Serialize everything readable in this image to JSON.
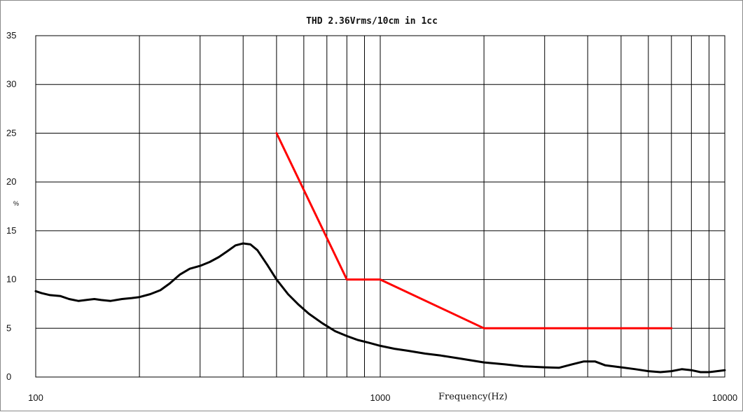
{
  "chart_data": {
    "type": "line",
    "title": "THD 2.36Vrms/10cm in 1cc",
    "xlabel": "Frequency(Hz)",
    "ylabel": "%",
    "x_scale": "log",
    "xlim": [
      100,
      10000
    ],
    "ylim": [
      0,
      35
    ],
    "x_tick_labels": [
      {
        "value": 100,
        "label": "100"
      },
      {
        "value": 1000,
        "label": "1000"
      },
      {
        "value": 10000,
        "label": "10000"
      }
    ],
    "y_ticks": [
      0,
      5,
      10,
      15,
      20,
      25,
      30,
      35
    ],
    "grid": true,
    "x_gridlines": [
      200,
      300,
      400,
      500,
      600,
      700,
      800,
      900,
      1000,
      2000,
      3000,
      4000,
      5000,
      6000,
      7000,
      8000,
      9000
    ],
    "series": [
      {
        "color": "#000000",
        "points": [
          [
            100,
            8.8
          ],
          [
            104,
            8.6
          ],
          [
            110,
            8.4
          ],
          [
            118,
            8.3
          ],
          [
            125,
            8.0
          ],
          [
            133,
            7.8
          ],
          [
            140,
            7.9
          ],
          [
            148,
            8.0
          ],
          [
            155,
            7.9
          ],
          [
            165,
            7.8
          ],
          [
            178,
            8.0
          ],
          [
            190,
            8.1
          ],
          [
            200,
            8.2
          ],
          [
            215,
            8.5
          ],
          [
            230,
            8.9
          ],
          [
            245,
            9.6
          ],
          [
            262,
            10.5
          ],
          [
            280,
            11.1
          ],
          [
            300,
            11.4
          ],
          [
            320,
            11.8
          ],
          [
            340,
            12.3
          ],
          [
            360,
            12.9
          ],
          [
            380,
            13.5
          ],
          [
            400,
            13.7
          ],
          [
            420,
            13.6
          ],
          [
            440,
            13.0
          ],
          [
            470,
            11.5
          ],
          [
            500,
            10.0
          ],
          [
            540,
            8.5
          ],
          [
            580,
            7.4
          ],
          [
            620,
            6.5
          ],
          [
            680,
            5.5
          ],
          [
            740,
            4.7
          ],
          [
            800,
            4.2
          ],
          [
            860,
            3.8
          ],
          [
            930,
            3.5
          ],
          [
            1000,
            3.2
          ],
          [
            1100,
            2.9
          ],
          [
            1200,
            2.7
          ],
          [
            1350,
            2.4
          ],
          [
            1500,
            2.2
          ],
          [
            1700,
            1.9
          ],
          [
            2000,
            1.5
          ],
          [
            2300,
            1.3
          ],
          [
            2600,
            1.1
          ],
          [
            3000,
            1.0
          ],
          [
            3300,
            0.95
          ],
          [
            3600,
            1.3
          ],
          [
            3900,
            1.6
          ],
          [
            4200,
            1.6
          ],
          [
            4500,
            1.2
          ],
          [
            5000,
            1.0
          ],
          [
            5500,
            0.8
          ],
          [
            6000,
            0.6
          ],
          [
            6500,
            0.5
          ],
          [
            7000,
            0.6
          ],
          [
            7500,
            0.8
          ],
          [
            8000,
            0.7
          ],
          [
            8500,
            0.5
          ],
          [
            9000,
            0.5
          ],
          [
            9500,
            0.6
          ],
          [
            10000,
            0.7
          ]
        ]
      },
      {
        "color": "#ff0000",
        "points": [
          [
            500,
            25
          ],
          [
            800,
            10
          ],
          [
            1000,
            10
          ],
          [
            2000,
            5
          ],
          [
            7000,
            5
          ]
        ]
      }
    ]
  }
}
